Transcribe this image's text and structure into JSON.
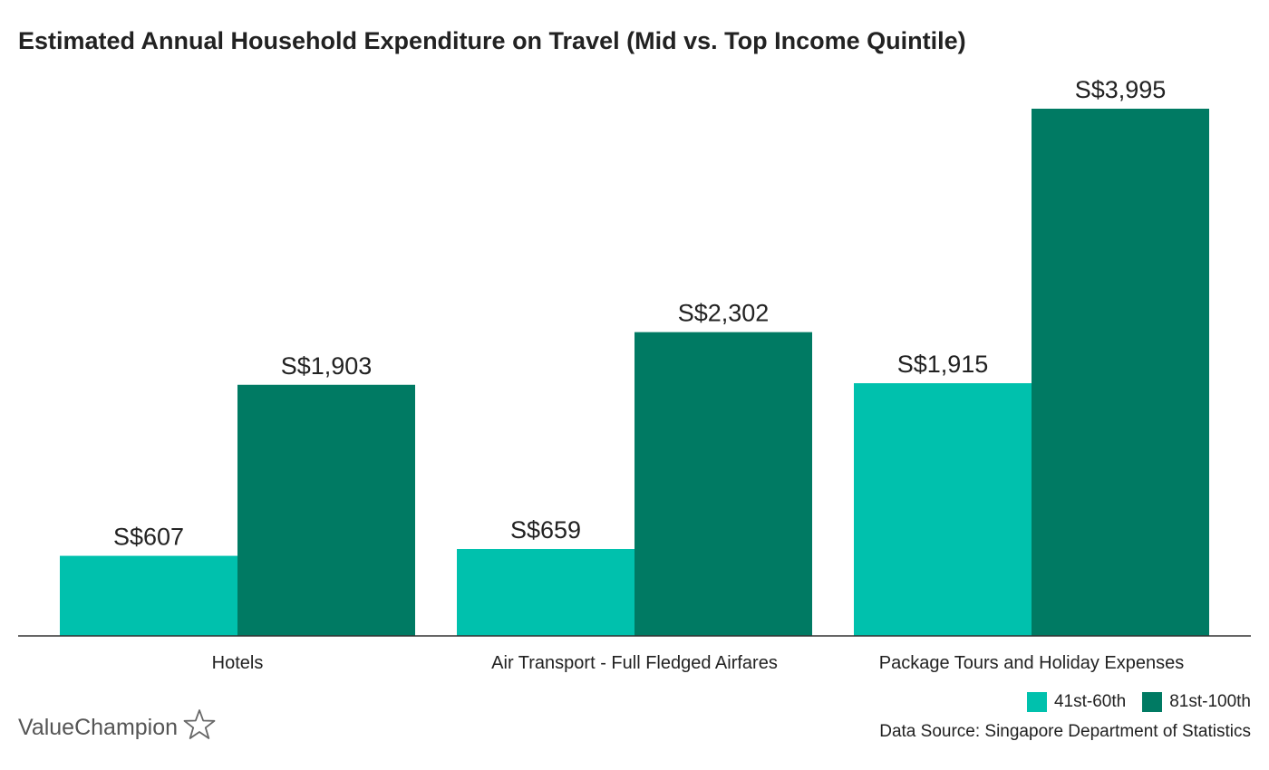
{
  "colors": {
    "series_1": "#00c1ad",
    "series_2": "#007a63",
    "axis": "#333333",
    "text": "#222222"
  },
  "brand": {
    "name": "ValueChampion",
    "icon": "star-outline-icon"
  },
  "source_note": "Data Source: Singapore Department of Statistics",
  "chart_data": {
    "type": "bar",
    "title": "Estimated Annual Household Expenditure on Travel (Mid vs. Top Income Quintile)",
    "xlabel": "",
    "ylabel": "",
    "ylim": [
      0,
      4200
    ],
    "grid": false,
    "legend_position": "bottom-right",
    "categories": [
      "Hotels",
      "Air Transport - Full Fledged Airfares",
      "Package Tours and Holiday Expenses"
    ],
    "series": [
      {
        "name": "41st-60th",
        "values": [
          607,
          659,
          1915
        ],
        "labels": [
          "S$607",
          "S$659",
          "S$1,915"
        ]
      },
      {
        "name": "81st-100th",
        "values": [
          1903,
          2302,
          3995
        ],
        "labels": [
          "S$1,903",
          "S$2,302",
          "S$3,995"
        ]
      }
    ]
  }
}
